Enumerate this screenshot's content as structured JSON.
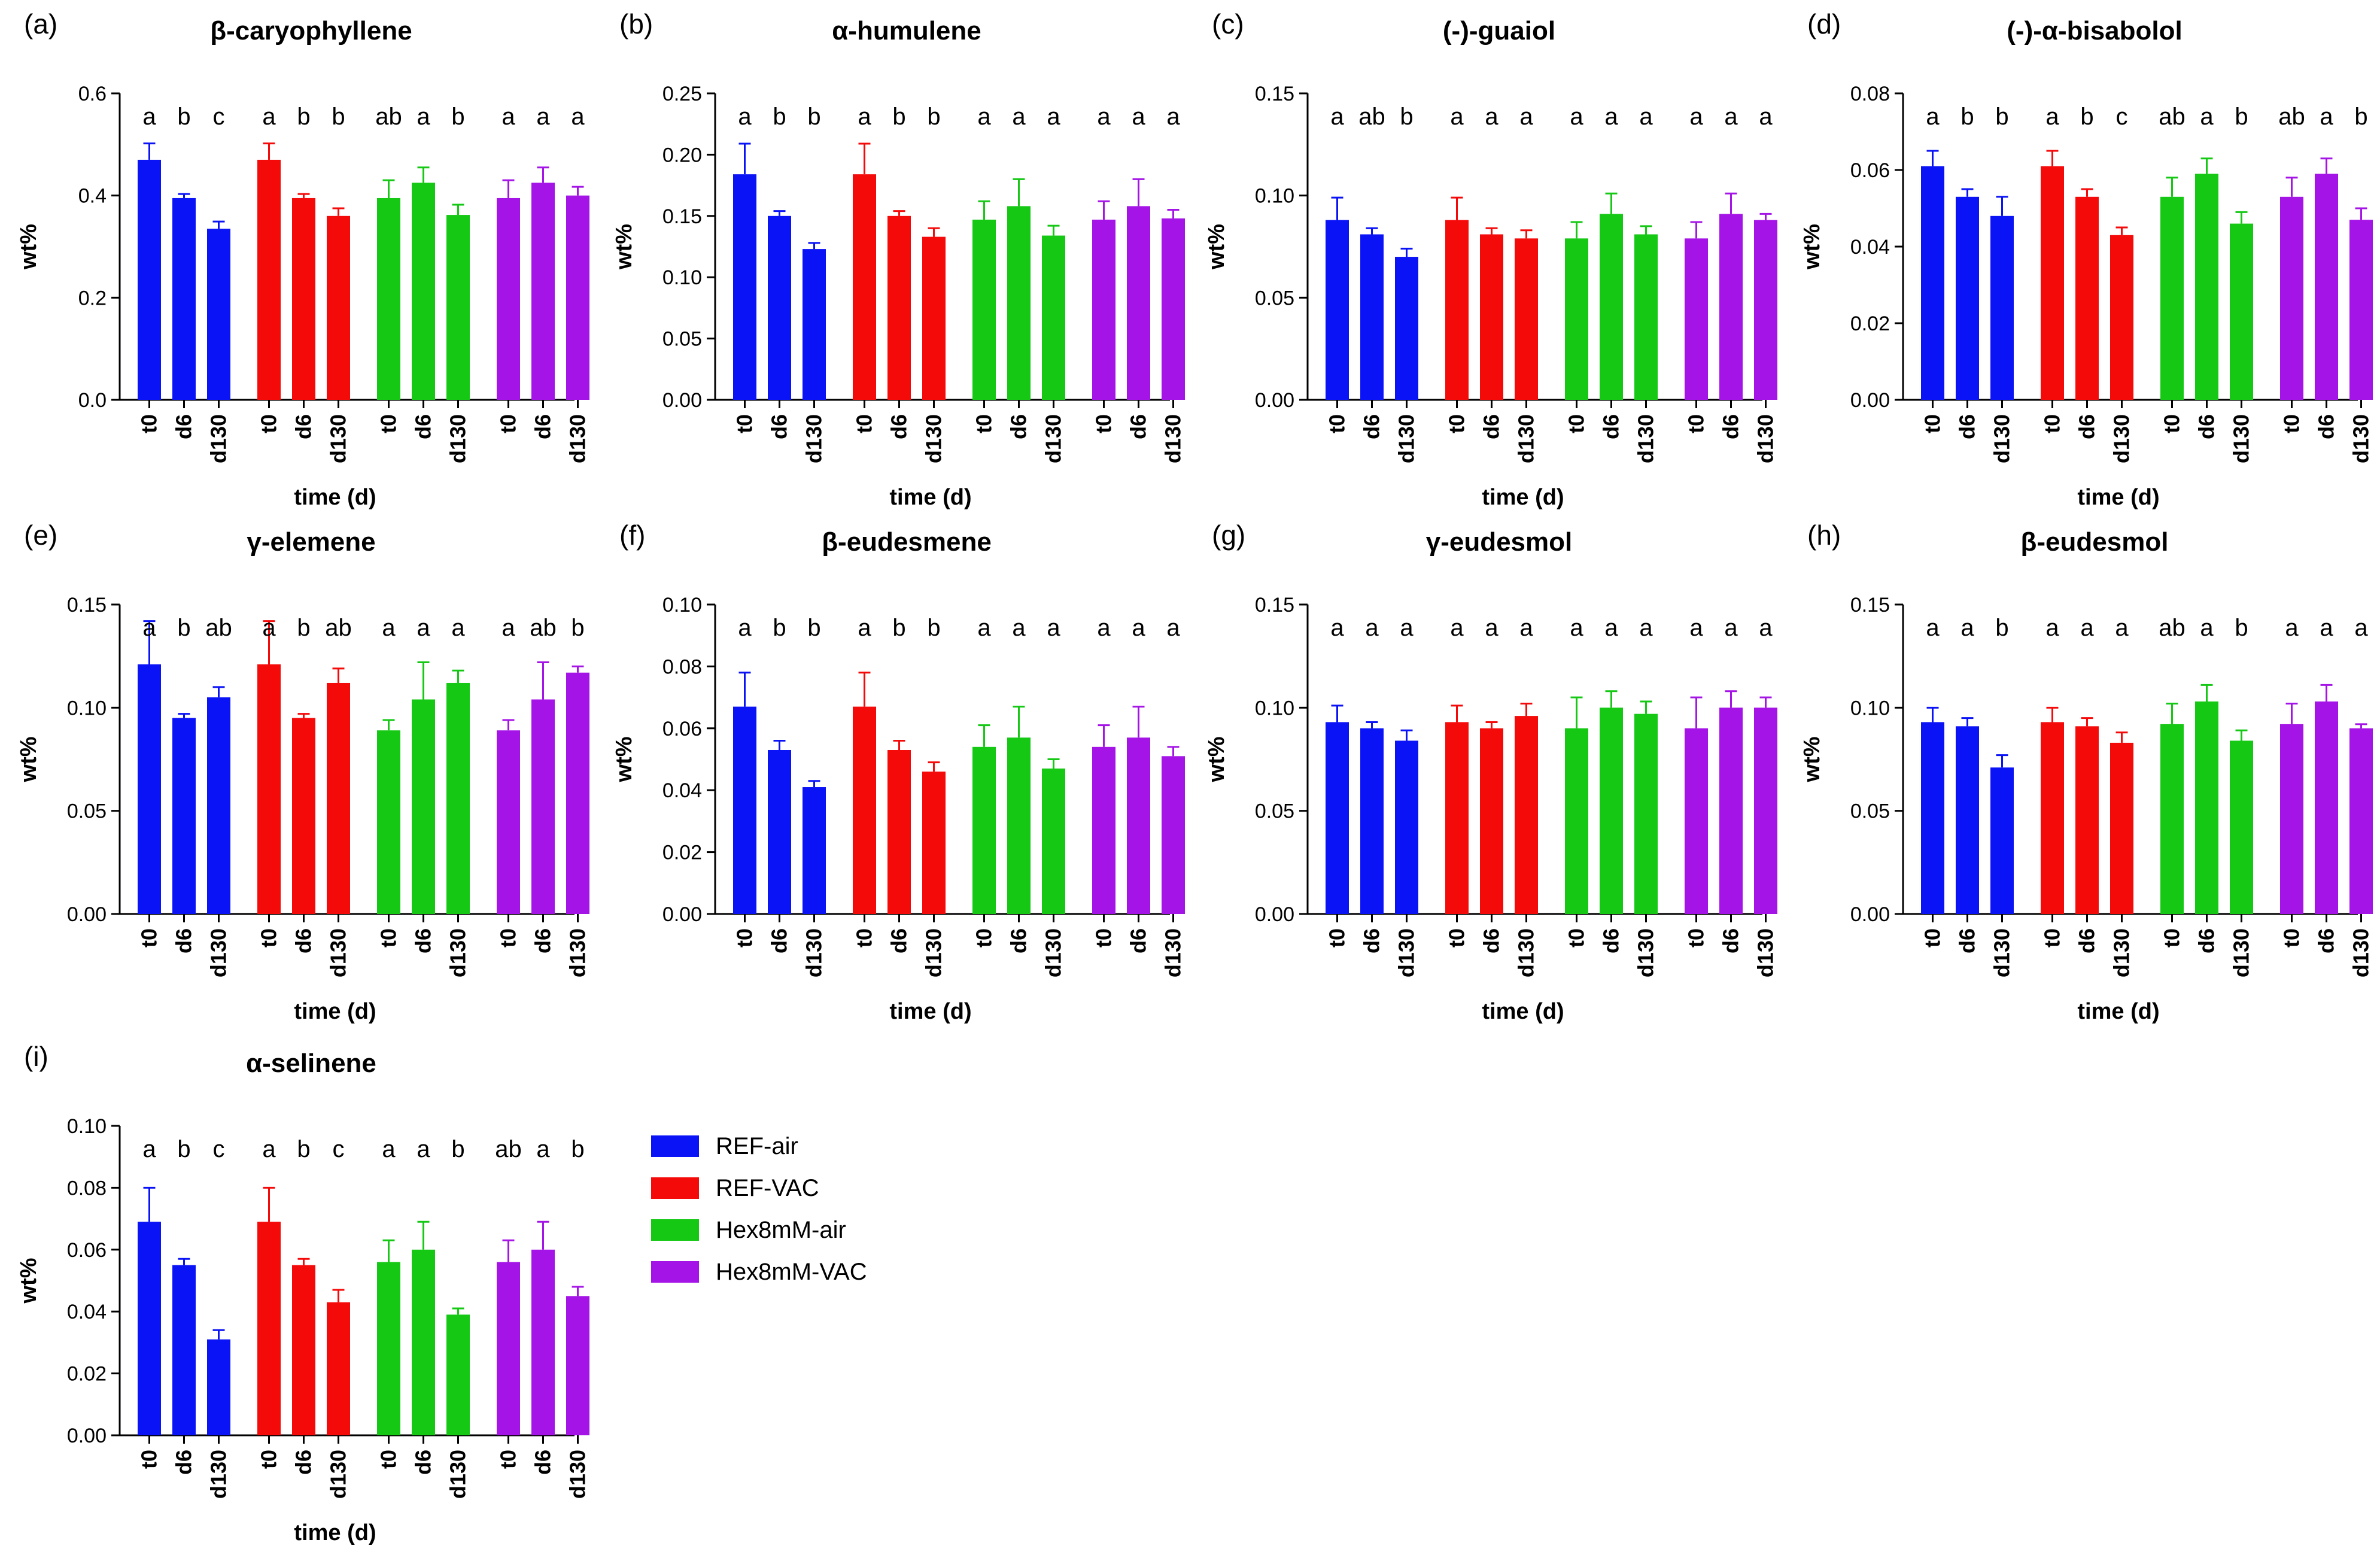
{
  "figure": {
    "legend": [
      {
        "name": "REF-air",
        "color": "#0a13f5"
      },
      {
        "name": "REF-VAC",
        "color": "#f50a0a"
      },
      {
        "name": "Hex8mM-air",
        "color": "#14c814"
      },
      {
        "name": "Hex8mM-VAC",
        "color": "#a514e6"
      }
    ]
  },
  "chart_data": [
    {
      "panel": "(a)",
      "title": "β-caryophyllene",
      "type": "bar",
      "categories": [
        "t0",
        "d6",
        "d130"
      ],
      "xlabel": "time (d)",
      "ylabel": "wt%",
      "ylim": [
        0,
        0.6
      ],
      "yticks": [
        "0.0",
        "0.2",
        "0.4",
        "0.6"
      ],
      "series": [
        {
          "name": "REF-air",
          "values": [
            0.47,
            0.395,
            0.335
          ],
          "errors": [
            0.032,
            0.008,
            0.014
          ],
          "letters": [
            "a",
            "b",
            "c"
          ]
        },
        {
          "name": "REF-VAC",
          "values": [
            0.47,
            0.395,
            0.36
          ],
          "errors": [
            0.032,
            0.008,
            0.015
          ],
          "letters": [
            "a",
            "b",
            "b"
          ]
        },
        {
          "name": "Hex8mM-air",
          "values": [
            0.395,
            0.425,
            0.362
          ],
          "errors": [
            0.035,
            0.03,
            0.02
          ],
          "letters": [
            "ab",
            "a",
            "b"
          ]
        },
        {
          "name": "Hex8mM-VAC",
          "values": [
            0.395,
            0.425,
            0.4
          ],
          "errors": [
            0.035,
            0.03,
            0.017
          ],
          "letters": [
            "a",
            "a",
            "a"
          ]
        }
      ]
    },
    {
      "panel": "(b)",
      "title": "α-humulene",
      "type": "bar",
      "categories": [
        "t0",
        "d6",
        "d130"
      ],
      "xlabel": "time (d)",
      "ylabel": "wt%",
      "ylim": [
        0,
        0.25
      ],
      "yticks": [
        "0.00",
        "0.05",
        "0.10",
        "0.15",
        "0.20",
        "0.25"
      ],
      "series": [
        {
          "name": "REF-air",
          "values": [
            0.184,
            0.15,
            0.123
          ],
          "errors": [
            0.025,
            0.004,
            0.005
          ],
          "letters": [
            "a",
            "b",
            "b"
          ]
        },
        {
          "name": "REF-VAC",
          "values": [
            0.184,
            0.15,
            0.133
          ],
          "errors": [
            0.025,
            0.004,
            0.007
          ],
          "letters": [
            "a",
            "b",
            "b"
          ]
        },
        {
          "name": "Hex8mM-air",
          "values": [
            0.147,
            0.158,
            0.134
          ],
          "errors": [
            0.015,
            0.022,
            0.008
          ],
          "letters": [
            "a",
            "a",
            "a"
          ]
        },
        {
          "name": "Hex8mM-VAC",
          "values": [
            0.147,
            0.158,
            0.148
          ],
          "errors": [
            0.015,
            0.022,
            0.007
          ],
          "letters": [
            "a",
            "a",
            "a"
          ]
        }
      ]
    },
    {
      "panel": "(c)",
      "title": "(-)-guaiol",
      "type": "bar",
      "categories": [
        "t0",
        "d6",
        "d130"
      ],
      "xlabel": "time (d)",
      "ylabel": "wt%",
      "ylim": [
        0,
        0.15
      ],
      "yticks": [
        "0.00",
        "0.05",
        "0.10",
        "0.15"
      ],
      "series": [
        {
          "name": "REF-air",
          "values": [
            0.088,
            0.081,
            0.07
          ],
          "errors": [
            0.011,
            0.003,
            0.004
          ],
          "letters": [
            "a",
            "ab",
            "b"
          ]
        },
        {
          "name": "REF-VAC",
          "values": [
            0.088,
            0.081,
            0.079
          ],
          "errors": [
            0.011,
            0.003,
            0.004
          ],
          "letters": [
            "a",
            "a",
            "a"
          ]
        },
        {
          "name": "Hex8mM-air",
          "values": [
            0.079,
            0.091,
            0.081
          ],
          "errors": [
            0.008,
            0.01,
            0.004
          ],
          "letters": [
            "a",
            "a",
            "a"
          ]
        },
        {
          "name": "Hex8mM-VAC",
          "values": [
            0.079,
            0.091,
            0.088
          ],
          "errors": [
            0.008,
            0.01,
            0.003
          ],
          "letters": [
            "a",
            "a",
            "a"
          ]
        }
      ]
    },
    {
      "panel": "(d)",
      "title": "(-)-α-bisabolol",
      "type": "bar",
      "categories": [
        "t0",
        "d6",
        "d130"
      ],
      "xlabel": "time (d)",
      "ylabel": "wt%",
      "ylim": [
        0,
        0.08
      ],
      "yticks": [
        "0.00",
        "0.02",
        "0.04",
        "0.06",
        "0.08"
      ],
      "series": [
        {
          "name": "REF-air",
          "values": [
            0.061,
            0.053,
            0.048
          ],
          "errors": [
            0.004,
            0.002,
            0.005
          ],
          "letters": [
            "a",
            "b",
            "b"
          ]
        },
        {
          "name": "REF-VAC",
          "values": [
            0.061,
            0.053,
            0.043
          ],
          "errors": [
            0.004,
            0.002,
            0.002
          ],
          "letters": [
            "a",
            "b",
            "c"
          ]
        },
        {
          "name": "Hex8mM-air",
          "values": [
            0.053,
            0.059,
            0.046
          ],
          "errors": [
            0.005,
            0.004,
            0.003
          ],
          "letters": [
            "ab",
            "a",
            "b"
          ]
        },
        {
          "name": "Hex8mM-VAC",
          "values": [
            0.053,
            0.059,
            0.047
          ],
          "errors": [
            0.005,
            0.004,
            0.003
          ],
          "letters": [
            "ab",
            "a",
            "b"
          ]
        }
      ]
    },
    {
      "panel": "(e)",
      "title": "γ-elemene",
      "type": "bar",
      "categories": [
        "t0",
        "d6",
        "d130"
      ],
      "xlabel": "time (d)",
      "ylabel": "wt%",
      "ylim": [
        0,
        0.15
      ],
      "yticks": [
        "0.00",
        "0.05",
        "0.10",
        "0.15"
      ],
      "series": [
        {
          "name": "REF-air",
          "values": [
            0.121,
            0.095,
            0.105
          ],
          "errors": [
            0.021,
            0.002,
            0.005
          ],
          "letters": [
            "a",
            "b",
            "ab"
          ]
        },
        {
          "name": "REF-VAC",
          "values": [
            0.121,
            0.095,
            0.112
          ],
          "errors": [
            0.021,
            0.002,
            0.007
          ],
          "letters": [
            "a",
            "b",
            "ab"
          ]
        },
        {
          "name": "Hex8mM-air",
          "values": [
            0.089,
            0.104,
            0.112
          ],
          "errors": [
            0.005,
            0.018,
            0.006
          ],
          "letters": [
            "a",
            "a",
            "a"
          ]
        },
        {
          "name": "Hex8mM-VAC",
          "values": [
            0.089,
            0.104,
            0.117
          ],
          "errors": [
            0.005,
            0.018,
            0.003
          ],
          "letters": [
            "a",
            "ab",
            "b"
          ]
        }
      ]
    },
    {
      "panel": "(f)",
      "title": "β-eudesmene",
      "type": "bar",
      "categories": [
        "t0",
        "d6",
        "d130"
      ],
      "xlabel": "time (d)",
      "ylabel": "wt%",
      "ylim": [
        0,
        0.1
      ],
      "yticks": [
        "0.00",
        "0.02",
        "0.04",
        "0.06",
        "0.08",
        "0.10"
      ],
      "series": [
        {
          "name": "REF-air",
          "values": [
            0.067,
            0.053,
            0.041
          ],
          "errors": [
            0.011,
            0.003,
            0.002
          ],
          "letters": [
            "a",
            "b",
            "b"
          ]
        },
        {
          "name": "REF-VAC",
          "values": [
            0.067,
            0.053,
            0.046
          ],
          "errors": [
            0.011,
            0.003,
            0.003
          ],
          "letters": [
            "a",
            "b",
            "b"
          ]
        },
        {
          "name": "Hex8mM-air",
          "values": [
            0.054,
            0.057,
            0.047
          ],
          "errors": [
            0.007,
            0.01,
            0.003
          ],
          "letters": [
            "a",
            "a",
            "a"
          ]
        },
        {
          "name": "Hex8mM-VAC",
          "values": [
            0.054,
            0.057,
            0.051
          ],
          "errors": [
            0.007,
            0.01,
            0.003
          ],
          "letters": [
            "a",
            "a",
            "a"
          ]
        }
      ]
    },
    {
      "panel": "(g)",
      "title": "γ-eudesmol",
      "type": "bar",
      "categories": [
        "t0",
        "d6",
        "d130"
      ],
      "xlabel": "time (d)",
      "ylabel": "wt%",
      "ylim": [
        0,
        0.15
      ],
      "yticks": [
        "0.00",
        "0.05",
        "0.10",
        "0.15"
      ],
      "series": [
        {
          "name": "REF-air",
          "values": [
            0.093,
            0.09,
            0.084
          ],
          "errors": [
            0.008,
            0.003,
            0.005
          ],
          "letters": [
            "a",
            "a",
            "a"
          ]
        },
        {
          "name": "REF-VAC",
          "values": [
            0.093,
            0.09,
            0.096
          ],
          "errors": [
            0.008,
            0.003,
            0.006
          ],
          "letters": [
            "a",
            "a",
            "a"
          ]
        },
        {
          "name": "Hex8mM-air",
          "values": [
            0.09,
            0.1,
            0.097
          ],
          "errors": [
            0.015,
            0.008,
            0.006
          ],
          "letters": [
            "a",
            "a",
            "a"
          ]
        },
        {
          "name": "Hex8mM-VAC",
          "values": [
            0.09,
            0.1,
            0.1
          ],
          "errors": [
            0.015,
            0.008,
            0.005
          ],
          "letters": [
            "a",
            "a",
            "a"
          ]
        }
      ]
    },
    {
      "panel": "(h)",
      "title": "β-eudesmol",
      "type": "bar",
      "categories": [
        "t0",
        "d6",
        "d130"
      ],
      "xlabel": "time (d)",
      "ylabel": "wt%",
      "ylim": [
        0,
        0.15
      ],
      "yticks": [
        "0.00",
        "0.05",
        "0.10",
        "0.15"
      ],
      "series": [
        {
          "name": "REF-air",
          "values": [
            0.093,
            0.091,
            0.071
          ],
          "errors": [
            0.007,
            0.004,
            0.006
          ],
          "letters": [
            "a",
            "a",
            "b"
          ]
        },
        {
          "name": "REF-VAC",
          "values": [
            0.093,
            0.091,
            0.083
          ],
          "errors": [
            0.007,
            0.004,
            0.005
          ],
          "letters": [
            "a",
            "a",
            "a"
          ]
        },
        {
          "name": "Hex8mM-air",
          "values": [
            0.092,
            0.103,
            0.084
          ],
          "errors": [
            0.01,
            0.008,
            0.005
          ],
          "letters": [
            "ab",
            "a",
            "b"
          ]
        },
        {
          "name": "Hex8mM-VAC",
          "values": [
            0.092,
            0.103,
            0.09
          ],
          "errors": [
            0.01,
            0.008,
            0.002
          ],
          "letters": [
            "a",
            "a",
            "a"
          ]
        }
      ]
    },
    {
      "panel": "(i)",
      "title": "α-selinene",
      "type": "bar",
      "categories": [
        "t0",
        "d6",
        "d130"
      ],
      "xlabel": "time (d)",
      "ylabel": "wt%",
      "ylim": [
        0,
        0.1
      ],
      "yticks": [
        "0.00",
        "0.02",
        "0.04",
        "0.06",
        "0.08",
        "0.10"
      ],
      "series": [
        {
          "name": "REF-air",
          "values": [
            0.069,
            0.055,
            0.031
          ],
          "errors": [
            0.011,
            0.002,
            0.003
          ],
          "letters": [
            "a",
            "b",
            "c"
          ]
        },
        {
          "name": "REF-VAC",
          "values": [
            0.069,
            0.055,
            0.043
          ],
          "errors": [
            0.011,
            0.002,
            0.004
          ],
          "letters": [
            "a",
            "b",
            "c"
          ]
        },
        {
          "name": "Hex8mM-air",
          "values": [
            0.056,
            0.06,
            0.039
          ],
          "errors": [
            0.007,
            0.009,
            0.002
          ],
          "letters": [
            "a",
            "a",
            "b"
          ]
        },
        {
          "name": "Hex8mM-VAC",
          "values": [
            0.056,
            0.06,
            0.045
          ],
          "errors": [
            0.007,
            0.009,
            0.003
          ],
          "letters": [
            "ab",
            "a",
            "b"
          ]
        }
      ]
    }
  ]
}
